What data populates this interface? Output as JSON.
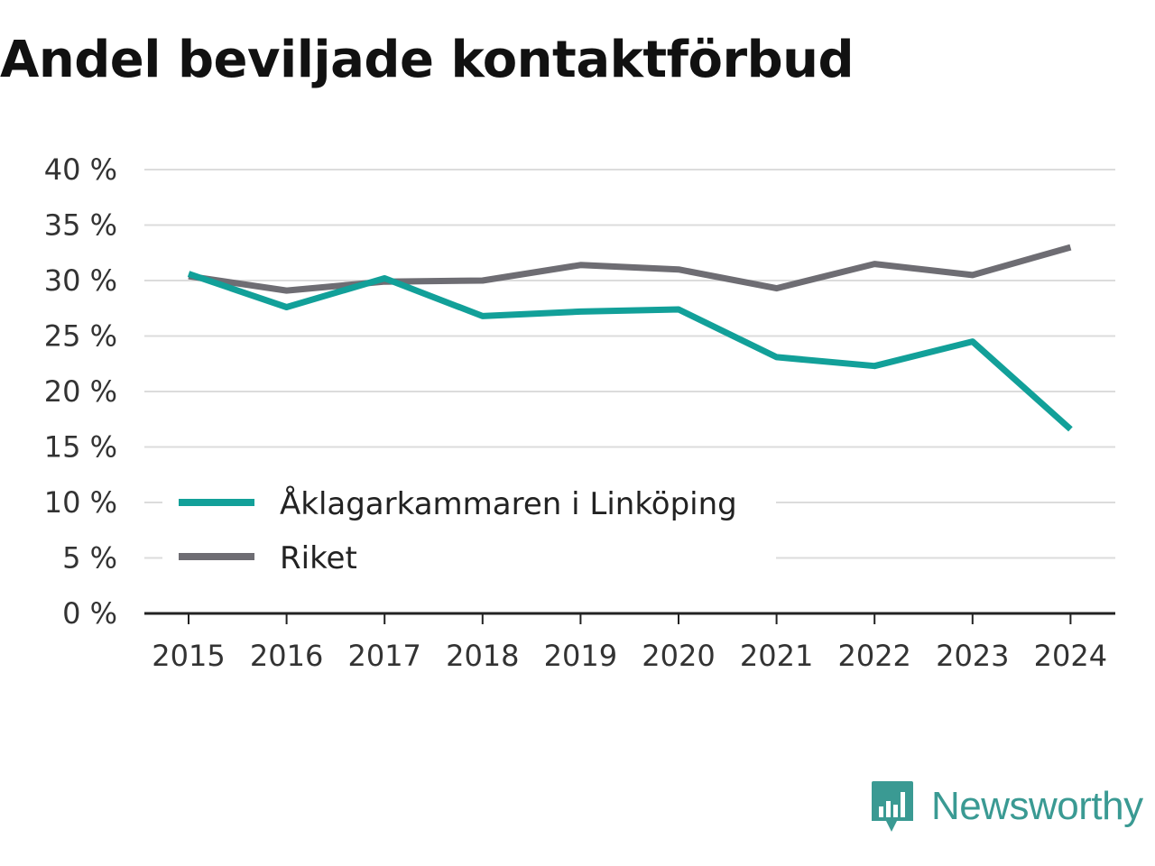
{
  "chart_data": {
    "type": "line",
    "title": "Andel beviljade kontaktförbud",
    "xlabel": "",
    "ylabel": "",
    "categories": [
      "2015",
      "2016",
      "2017",
      "2018",
      "2019",
      "2020",
      "2021",
      "2022",
      "2023",
      "2024"
    ],
    "yticks": [
      "0 %",
      "5 %",
      "10 %",
      "15 %",
      "20 %",
      "25 %",
      "30 %",
      "35 %",
      "40 %"
    ],
    "ylim": [
      0,
      40
    ],
    "grid": true,
    "legend_position": "bottom-left",
    "series": [
      {
        "name": "Åklagarkammaren i Linköping",
        "color": "#12a099",
        "values": [
          30.6,
          27.6,
          30.2,
          26.8,
          27.2,
          27.4,
          23.1,
          22.3,
          24.5,
          16.6
        ]
      },
      {
        "name": "Riket",
        "color": "#6e6d73",
        "values": [
          30.4,
          29.1,
          29.9,
          30.0,
          31.4,
          31.0,
          29.3,
          31.5,
          30.5,
          33.0
        ]
      }
    ]
  },
  "brand": {
    "name": "Newsworthy",
    "icon": "newsworthy-logo-icon",
    "color": "#3a9a93"
  }
}
